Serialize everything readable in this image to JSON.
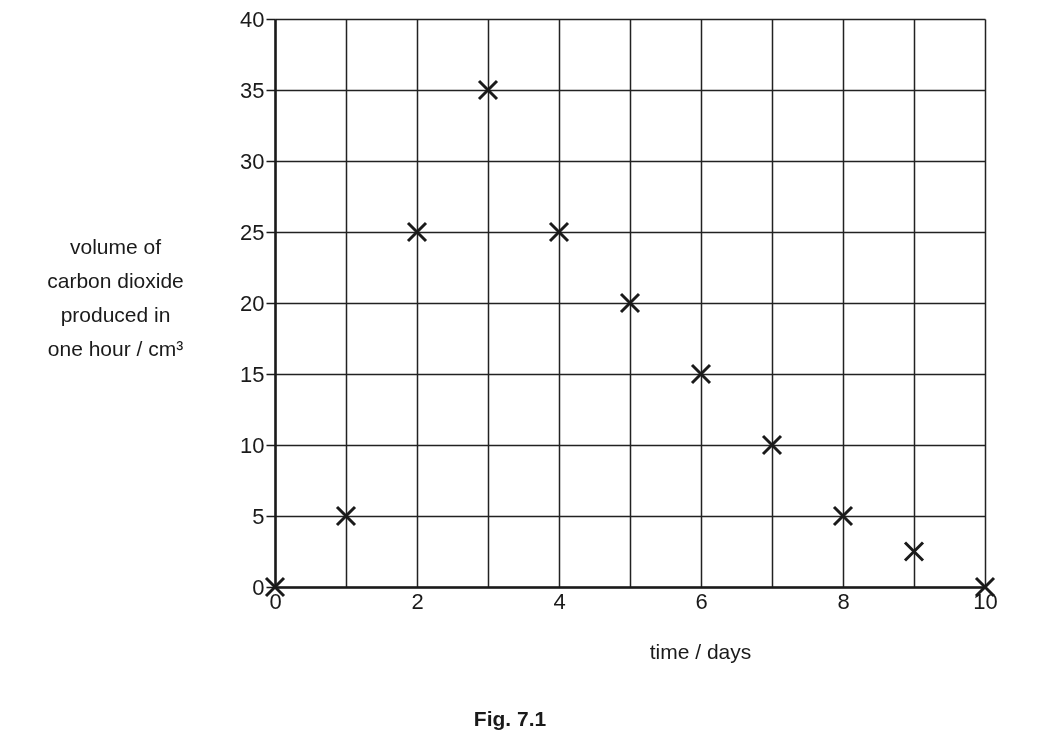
{
  "chart_data": {
    "type": "scatter",
    "xlabel": "time / days",
    "ylabel": "volume of carbon dioxide produced in one hour / cm³",
    "annotations": [
      "Fig. 7.1"
    ],
    "xlim": [
      0,
      10
    ],
    "xticks": [
      0,
      {
        "value": 1,
        "label": null
      },
      2,
      {
        "value": 3,
        "label": null
      },
      4,
      {
        "value": 5,
        "label": null
      },
      6,
      {
        "value": 7,
        "label": null
      },
      8,
      {
        "value": 9,
        "label": null
      },
      10
    ],
    "ylim": [
      0,
      40
    ],
    "yticks": [
      0,
      5,
      10,
      15,
      20,
      25,
      30,
      35,
      40
    ],
    "grid": true,
    "marker": "cross",
    "series": [
      {
        "color": "#1a1a1a",
        "x": [
          0,
          1,
          2,
          3,
          4,
          5,
          6,
          7,
          8,
          9,
          10
        ],
        "values": [
          0,
          5,
          25,
          35,
          25,
          20,
          15,
          10,
          5,
          2.5,
          0
        ]
      }
    ]
  }
}
